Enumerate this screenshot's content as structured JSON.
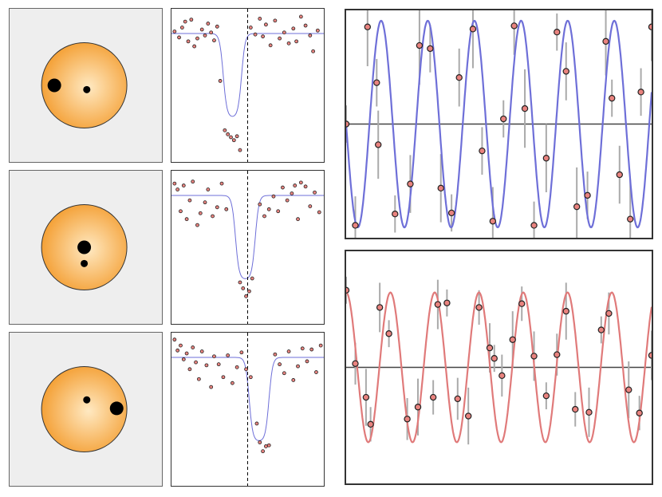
{
  "colors": {
    "panel_bg": "#eeeeee",
    "star_inner": "#ffe9c2",
    "star_outer": "#f39a2a",
    "star_edge": "#333333",
    "spot": "#000000",
    "model_blue": "#6e6fd8",
    "model_red": "#e07a7a",
    "marker_fill": "#e9837f",
    "marker_edge": "#222222",
    "errorbar": "#aaaaaa",
    "zero_line": "#444444"
  },
  "chart_data": [
    {
      "type": "scatter",
      "panel": "star-1",
      "spots": [
        {
          "u": 0.15,
          "v": 0.5,
          "size": "large"
        },
        {
          "u": 0.53,
          "v": 0.55,
          "size": "small"
        }
      ],
      "transit": {
        "baseline": 1.0,
        "depth": -0.85,
        "ingress_x": 0.34,
        "egress_x": 0.46,
        "timing_marker_x": 0.5
      },
      "points": [
        [
          0.02,
          1.02
        ],
        [
          0.05,
          0.96
        ],
        [
          0.07,
          1.06
        ],
        [
          0.09,
          1.12
        ],
        [
          0.11,
          0.92
        ],
        [
          0.13,
          1.14
        ],
        [
          0.15,
          0.87
        ],
        [
          0.17,
          0.95
        ],
        [
          0.2,
          1.04
        ],
        [
          0.22,
          0.98
        ],
        [
          0.24,
          1.1
        ],
        [
          0.26,
          1.01
        ],
        [
          0.28,
          0.93
        ],
        [
          0.3,
          1.07
        ],
        [
          0.32,
          0.52
        ],
        [
          0.35,
          0.02
        ],
        [
          0.37,
          -0.02
        ],
        [
          0.39,
          -0.05
        ],
        [
          0.41,
          -0.08
        ],
        [
          0.43,
          -0.04
        ],
        [
          0.45,
          -0.18
        ],
        [
          0.52,
          1.06
        ],
        [
          0.55,
          0.99
        ],
        [
          0.58,
          1.15
        ],
        [
          0.6,
          0.97
        ],
        [
          0.62,
          1.09
        ],
        [
          0.65,
          0.88
        ],
        [
          0.68,
          1.13
        ],
        [
          0.71,
          0.95
        ],
        [
          0.74,
          1.01
        ],
        [
          0.77,
          0.9
        ],
        [
          0.8,
          1.05
        ],
        [
          0.82,
          0.92
        ],
        [
          0.85,
          1.17
        ],
        [
          0.88,
          1.08
        ],
        [
          0.91,
          0.98
        ],
        [
          0.93,
          0.82
        ],
        [
          0.96,
          1.03
        ]
      ]
    },
    {
      "type": "scatter",
      "panel": "star-2",
      "spots": [
        {
          "u": 0.5,
          "v": 0.5,
          "size": "large"
        },
        {
          "u": 0.5,
          "v": 0.69,
          "size": "small"
        }
      ],
      "transit": {
        "baseline": 1.0,
        "depth": -0.85,
        "ingress_x": 0.42,
        "egress_x": 0.55,
        "timing_marker_x": 0.5
      },
      "points": [
        [
          0.02,
          1.12
        ],
        [
          0.04,
          1.06
        ],
        [
          0.06,
          0.84
        ],
        [
          0.08,
          1.1
        ],
        [
          0.1,
          0.76
        ],
        [
          0.12,
          0.95
        ],
        [
          0.14,
          1.14
        ],
        [
          0.17,
          0.7
        ],
        [
          0.19,
          0.82
        ],
        [
          0.22,
          0.93
        ],
        [
          0.24,
          1.06
        ],
        [
          0.27,
          0.79
        ],
        [
          0.3,
          0.88
        ],
        [
          0.33,
          1.12
        ],
        [
          0.36,
          0.86
        ],
        [
          0.45,
          0.12
        ],
        [
          0.47,
          0.06
        ],
        [
          0.49,
          -0.02
        ],
        [
          0.51,
          0.03
        ],
        [
          0.53,
          0.16
        ],
        [
          0.58,
          0.91
        ],
        [
          0.61,
          0.79
        ],
        [
          0.64,
          0.86
        ],
        [
          0.67,
          0.99
        ],
        [
          0.7,
          0.84
        ],
        [
          0.73,
          1.08
        ],
        [
          0.76,
          0.95
        ],
        [
          0.79,
          1.02
        ],
        [
          0.81,
          1.1
        ],
        [
          0.83,
          0.76
        ],
        [
          0.85,
          1.13
        ],
        [
          0.88,
          1.09
        ],
        [
          0.91,
          0.89
        ],
        [
          0.94,
          1.03
        ],
        [
          0.97,
          0.83
        ]
      ]
    },
    {
      "type": "scatter",
      "panel": "star-3",
      "spots": [
        {
          "u": 0.53,
          "v": 0.39,
          "size": "small"
        },
        {
          "u": 0.88,
          "v": 0.49,
          "size": "large"
        }
      ],
      "transit": {
        "baseline": 1.0,
        "depth": -0.85,
        "ingress_x": 0.51,
        "egress_x": 0.64,
        "timing_marker_x": 0.5
      },
      "points": [
        [
          0.02,
          1.18
        ],
        [
          0.04,
          1.07
        ],
        [
          0.06,
          1.12
        ],
        [
          0.08,
          0.98
        ],
        [
          0.1,
          1.04
        ],
        [
          0.12,
          0.88
        ],
        [
          0.14,
          1.1
        ],
        [
          0.16,
          0.95
        ],
        [
          0.18,
          0.78
        ],
        [
          0.2,
          1.06
        ],
        [
          0.23,
          0.92
        ],
        [
          0.26,
          0.7
        ],
        [
          0.28,
          1.01
        ],
        [
          0.31,
          0.93
        ],
        [
          0.34,
          0.8
        ],
        [
          0.37,
          1.02
        ],
        [
          0.4,
          0.74
        ],
        [
          0.43,
          0.9
        ],
        [
          0.46,
          1.05
        ],
        [
          0.49,
          0.88
        ],
        [
          0.52,
          0.8
        ],
        [
          0.56,
          0.33
        ],
        [
          0.58,
          0.14
        ],
        [
          0.6,
          0.05
        ],
        [
          0.62,
          0.1
        ],
        [
          0.64,
          0.11
        ],
        [
          0.68,
          1.03
        ],
        [
          0.71,
          0.93
        ],
        [
          0.74,
          0.84
        ],
        [
          0.77,
          1.06
        ],
        [
          0.8,
          0.77
        ],
        [
          0.83,
          0.91
        ],
        [
          0.86,
          1.09
        ],
        [
          0.89,
          0.96
        ],
        [
          0.92,
          1.08
        ],
        [
          0.95,
          0.85
        ],
        [
          0.98,
          1.12
        ]
      ]
    },
    {
      "type": "line",
      "panel": "signal-blue",
      "model": {
        "amplitude": 1.0,
        "cycles": 6.55,
        "phase": -0.5
      },
      "ylim": [
        -1.1,
        1.1
      ],
      "points": [
        [
          0.0,
          0.0
        ],
        [
          0.03,
          -0.98
        ],
        [
          0.07,
          0.94
        ],
        [
          0.1,
          0.4
        ],
        [
          0.105,
          -0.2
        ],
        [
          0.16,
          -0.87
        ],
        [
          0.21,
          -0.58
        ],
        [
          0.24,
          0.76
        ],
        [
          0.275,
          0.73
        ],
        [
          0.31,
          -0.62
        ],
        [
          0.345,
          -0.86
        ],
        [
          0.37,
          0.45
        ],
        [
          0.415,
          0.92
        ],
        [
          0.445,
          -0.26
        ],
        [
          0.48,
          -0.94
        ],
        [
          0.515,
          0.05
        ],
        [
          0.55,
          0.95
        ],
        [
          0.585,
          0.15
        ],
        [
          0.615,
          -0.98
        ],
        [
          0.655,
          -0.33
        ],
        [
          0.69,
          0.89
        ],
        [
          0.72,
          0.51
        ],
        [
          0.755,
          -0.8
        ],
        [
          0.79,
          -0.69
        ],
        [
          0.85,
          0.8
        ],
        [
          0.87,
          0.25
        ],
        [
          0.895,
          -0.49
        ],
        [
          0.93,
          -0.92
        ],
        [
          0.965,
          0.31
        ],
        [
          1.0,
          0.94
        ]
      ]
    },
    {
      "type": "line",
      "panel": "signal-red",
      "model": {
        "amplitude": 1.0,
        "cycles": 6.9,
        "phase": 0.25
      },
      "ylim": [
        -1.55,
        1.55
      ],
      "points": [
        [
          0.0,
          1.03
        ],
        [
          0.03,
          0.05
        ],
        [
          0.065,
          -0.4
        ],
        [
          0.08,
          -0.76
        ],
        [
          0.11,
          0.8
        ],
        [
          0.14,
          0.45
        ],
        [
          0.2,
          -0.69
        ],
        [
          0.235,
          -0.53
        ],
        [
          0.285,
          -0.4
        ],
        [
          0.3,
          0.84
        ],
        [
          0.33,
          0.86
        ],
        [
          0.365,
          -0.42
        ],
        [
          0.4,
          -0.65
        ],
        [
          0.435,
          0.8
        ],
        [
          0.47,
          0.26
        ],
        [
          0.485,
          0.12
        ],
        [
          0.51,
          -0.11
        ],
        [
          0.545,
          0.37
        ],
        [
          0.575,
          0.85
        ],
        [
          0.615,
          0.15
        ],
        [
          0.655,
          -0.38
        ],
        [
          0.69,
          0.17
        ],
        [
          0.72,
          0.75
        ],
        [
          0.75,
          -0.56
        ],
        [
          0.795,
          -0.6
        ],
        [
          0.835,
          0.5
        ],
        [
          0.86,
          0.72
        ],
        [
          0.925,
          -0.3
        ],
        [
          0.96,
          -0.61
        ],
        [
          1.0,
          0.16
        ]
      ]
    }
  ]
}
